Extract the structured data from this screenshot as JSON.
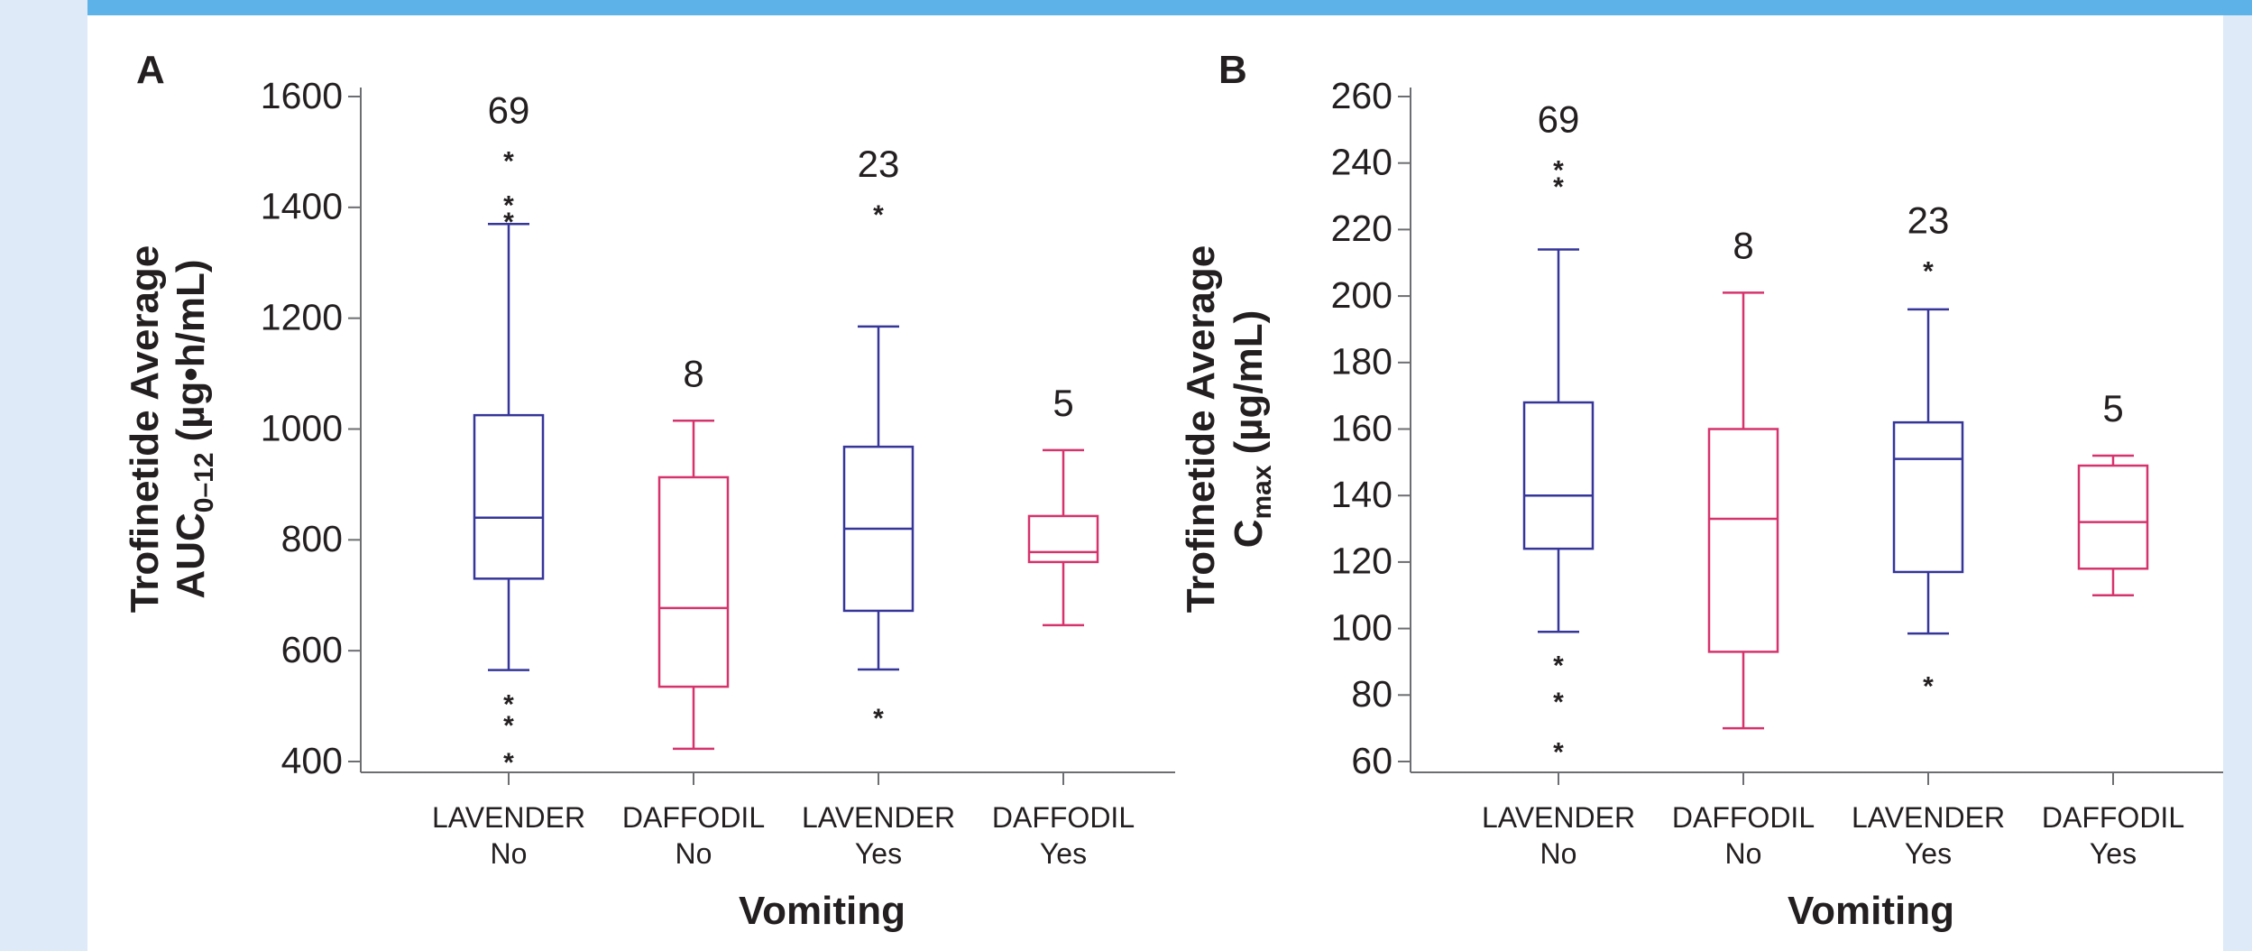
{
  "chart_data": [
    {
      "type": "box",
      "panel_label": "A",
      "ylabel": {
        "line1": "Trofinetide Average",
        "main": "AUC",
        "sub": "0–12",
        "unit": "(µg•h/mL)"
      },
      "xlabel": "Vomiting",
      "categories": [
        [
          "LAVENDER",
          "No"
        ],
        [
          "DAFFODIL",
          "No"
        ],
        [
          "LAVENDER",
          "Yes"
        ],
        [
          "DAFFODIL",
          "Yes"
        ]
      ],
      "ylim": [
        400,
        1600
      ],
      "yticks": [
        400,
        600,
        800,
        1000,
        1200,
        1400,
        1600
      ],
      "boxes": [
        {
          "color": "#35359a",
          "whislo": 565,
          "q1": 730,
          "med": 840,
          "q3": 1025,
          "whishi": 1370,
          "fliers": [
            1490,
            1410,
            1380,
            510,
            472,
            405
          ],
          "n_label": "69"
        },
        {
          "color": "#d6336c",
          "whislo": 423,
          "q1": 535,
          "med": 677,
          "q3": 913,
          "whishi": 1015,
          "fliers": [],
          "n_label": "8"
        },
        {
          "color": "#35359a",
          "whislo": 566,
          "q1": 672,
          "med": 820,
          "q3": 968,
          "whishi": 1185,
          "fliers": [
            1393,
            485
          ],
          "n_label": "23"
        },
        {
          "color": "#d6336c",
          "whislo": 646,
          "q1": 760,
          "med": 778,
          "q3": 843,
          "whishi": 962,
          "fliers": [],
          "n_label": "5"
        }
      ]
    },
    {
      "type": "box",
      "panel_label": "B",
      "ylabel": {
        "line1": "Trofinetide Average",
        "main": "C",
        "sub": "max",
        "unit": "(µg/mL)"
      },
      "xlabel": "Vomiting",
      "categories": [
        [
          "LAVENDER",
          "No"
        ],
        [
          "DAFFODIL",
          "No"
        ],
        [
          "LAVENDER",
          "Yes"
        ],
        [
          "DAFFODIL",
          "Yes"
        ]
      ],
      "ylim": [
        60,
        260
      ],
      "yticks": [
        60,
        80,
        100,
        120,
        140,
        160,
        180,
        200,
        220,
        240,
        260
      ],
      "boxes": [
        {
          "color": "#35359a",
          "whislo": 99,
          "q1": 124,
          "med": 140,
          "q3": 168,
          "whishi": 214,
          "fliers": [
            239,
            234,
            90,
            79,
            64
          ],
          "n_label": "69"
        },
        {
          "color": "#d6336c",
          "whislo": 70,
          "q1": 93,
          "med": 133,
          "q3": 160,
          "whishi": 201,
          "fliers": [],
          "n_label": "8"
        },
        {
          "color": "#35359a",
          "whislo": 98.5,
          "q1": 117,
          "med": 151,
          "q3": 162,
          "whishi": 196,
          "fliers": [
            208.6,
            83.8
          ],
          "n_label": "23"
        },
        {
          "color": "#d6336c",
          "whislo": 110,
          "q1": 118,
          "med": 132,
          "q3": 149,
          "whishi": 152,
          "fliers": [],
          "n_label": "5"
        }
      ]
    }
  ]
}
